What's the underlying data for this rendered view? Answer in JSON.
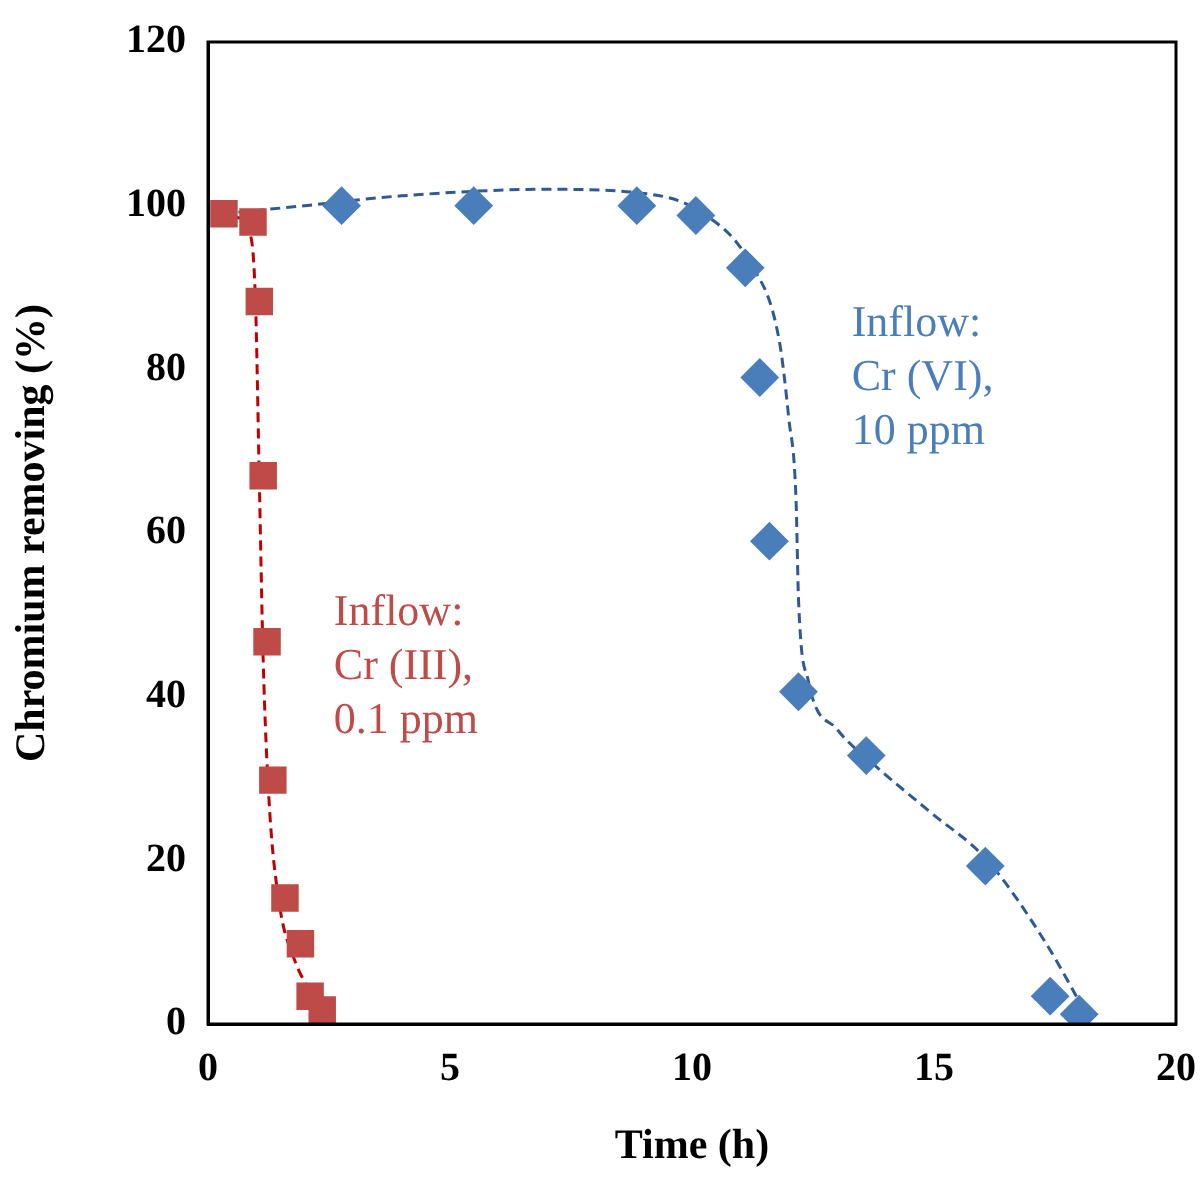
{
  "chart_data": {
    "type": "scatter",
    "xlabel": "Time (h)",
    "ylabel": "Chromium removing (%)",
    "xlim": [
      0,
      20
    ],
    "xticks": [
      0,
      5,
      10,
      15,
      20
    ],
    "ylim": [
      0,
      120
    ],
    "yticks": [
      0,
      20,
      40,
      60,
      80,
      100,
      120
    ],
    "grid": false,
    "legend": false,
    "series": [
      {
        "marker": "diamond",
        "color": "#4a7ebb",
        "x": [
          2.76,
          5.49,
          8.86,
          10.08,
          11.1,
          11.4,
          11.6,
          12.2,
          13.6,
          16.06,
          17.4,
          18.0
        ],
        "values": [
          100,
          100,
          100,
          98.8,
          92.4,
          79,
          59,
          40.6,
          32.8,
          19.3,
          3.4,
          1.2
        ]
      },
      {
        "marker": "square",
        "color": "#be4b48",
        "x": [
          0.33,
          0.93,
          1.06,
          1.14,
          1.22,
          1.34,
          1.59,
          1.91,
          2.11,
          2.36
        ],
        "values": [
          99,
          98,
          88.3,
          67,
          46.7,
          29.8,
          15.4,
          9.8,
          3.4,
          1.7
        ]
      },
      {
        "type": "line",
        "marker": "none",
        "line_style": "dashed",
        "color": "#2e5a94",
        "x": [
          0.3,
          2,
          4,
          7,
          9,
          10.1,
          11.2,
          11.8,
          12.0,
          12.15,
          12.2,
          12.4,
          13.0,
          13.7,
          14.9,
          16.1,
          17.3,
          18.1
        ],
        "values": [
          99,
          100,
          101.2,
          102,
          101.5,
          99.5,
          93,
          83.6,
          74,
          64,
          52,
          42,
          36,
          32,
          26,
          20,
          10,
          1.7
        ]
      },
      {
        "type": "line",
        "marker": "none",
        "line_style": "dashed",
        "color": "#c00000",
        "x": [
          0.15,
          0.65,
          0.85,
          0.98,
          1.06,
          1.14,
          1.26,
          1.46,
          1.79,
          2.28,
          2.68
        ],
        "values": [
          99,
          98.5,
          97,
          88.5,
          66.5,
          44.5,
          27.4,
          15.2,
          7.8,
          2.9,
          1
        ]
      }
    ],
    "annotations": [
      "Inflow:\nCr (VI),\n10 ppm",
      "Inflow:\nCr (III),\n0.1 ppm"
    ]
  }
}
